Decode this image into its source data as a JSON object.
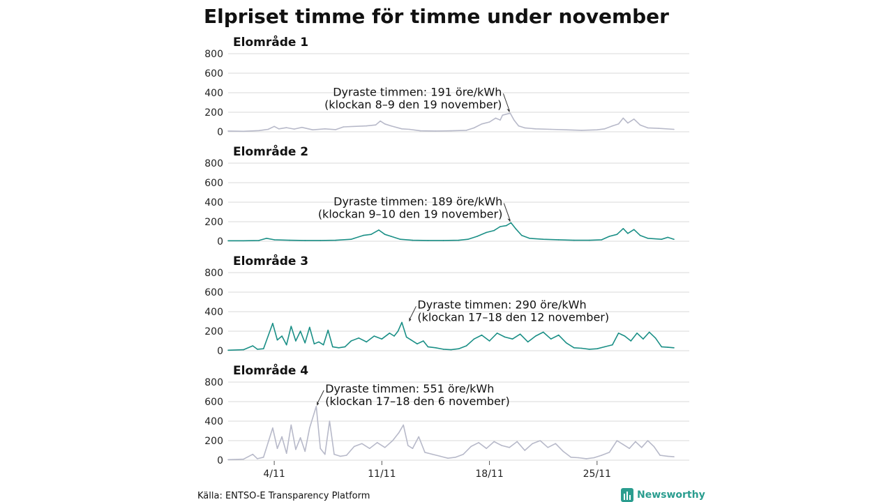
{
  "chart_data": {
    "type": "line",
    "title": "Elpriset timme för timme under november",
    "source": "Källa: ENTSO-E Transparency Platform",
    "brand": "Newsworthy",
    "x_unit": "hour of November",
    "x_range": [
      "2022-11-01 00:00",
      "2022-11-30 23:00"
    ],
    "x_ticks": [
      {
        "label": "4/11",
        "day": 4
      },
      {
        "label": "11/11",
        "day": 11
      },
      {
        "label": "18/11",
        "day": 18
      },
      {
        "label": "25/11",
        "day": 25
      }
    ],
    "ylim": [
      0,
      800
    ],
    "y_ticks": [
      0,
      200,
      400,
      600,
      800
    ],
    "grid": true,
    "panels": [
      {
        "name": "Elområde 1",
        "color": "#b7b9c9",
        "annotation": {
          "line1": "Dyraste timmen: 191 öre/kWh",
          "line2": "(klockan 8–9 den 19 november)",
          "day": 19,
          "hour": 8.5,
          "value": 191,
          "side": "left"
        },
        "points": [
          [
            1,
            8
          ],
          [
            2,
            5
          ],
          [
            3,
            12
          ],
          [
            3.6,
            25
          ],
          [
            4,
            55
          ],
          [
            4.3,
            30
          ],
          [
            4.8,
            42
          ],
          [
            5.3,
            28
          ],
          [
            5.8,
            45
          ],
          [
            6.5,
            20
          ],
          [
            7.3,
            30
          ],
          [
            8,
            22
          ],
          [
            8.5,
            50
          ],
          [
            9.2,
            55
          ],
          [
            10,
            60
          ],
          [
            10.6,
            70
          ],
          [
            10.9,
            110
          ],
          [
            11.2,
            80
          ],
          [
            11.6,
            60
          ],
          [
            12.3,
            30
          ],
          [
            12.8,
            25
          ],
          [
            13.5,
            10
          ],
          [
            14.5,
            8
          ],
          [
            15.5,
            10
          ],
          [
            16.5,
            15
          ],
          [
            17,
            40
          ],
          [
            17.5,
            80
          ],
          [
            18,
            100
          ],
          [
            18.4,
            140
          ],
          [
            18.7,
            120
          ],
          [
            18.85,
            170
          ],
          [
            19.35,
            191
          ],
          [
            19.6,
            120
          ],
          [
            19.9,
            60
          ],
          [
            20.3,
            40
          ],
          [
            21,
            30
          ],
          [
            22,
            25
          ],
          [
            23,
            20
          ],
          [
            24,
            15
          ],
          [
            25,
            20
          ],
          [
            25.5,
            30
          ],
          [
            26,
            60
          ],
          [
            26.4,
            80
          ],
          [
            26.7,
            140
          ],
          [
            27,
            90
          ],
          [
            27.4,
            130
          ],
          [
            27.8,
            70
          ],
          [
            28.3,
            40
          ],
          [
            29,
            35
          ],
          [
            30,
            25
          ]
        ]
      },
      {
        "name": "Elområde 2",
        "color": "#1a8f86",
        "annotation": {
          "line1": "Dyraste timmen: 189 öre/kWh",
          "line2": "(klockan 9–10 den 19 november)",
          "day": 19,
          "hour": 9.5,
          "value": 189,
          "side": "left"
        },
        "points": [
          [
            1,
            5
          ],
          [
            2,
            5
          ],
          [
            3,
            8
          ],
          [
            3.5,
            30
          ],
          [
            4,
            15
          ],
          [
            5,
            10
          ],
          [
            6,
            8
          ],
          [
            7,
            8
          ],
          [
            8,
            10
          ],
          [
            9,
            20
          ],
          [
            9.8,
            60
          ],
          [
            10.3,
            70
          ],
          [
            10.8,
            115
          ],
          [
            11.2,
            70
          ],
          [
            11.6,
            50
          ],
          [
            12.2,
            20
          ],
          [
            13,
            10
          ],
          [
            14,
            8
          ],
          [
            15,
            8
          ],
          [
            16,
            10
          ],
          [
            16.6,
            20
          ],
          [
            17.2,
            50
          ],
          [
            17.8,
            90
          ],
          [
            18.3,
            110
          ],
          [
            18.7,
            150
          ],
          [
            19.1,
            160
          ],
          [
            19.4,
            189
          ],
          [
            19.7,
            130
          ],
          [
            20.1,
            60
          ],
          [
            20.6,
            30
          ],
          [
            21.5,
            20
          ],
          [
            22.5,
            15
          ],
          [
            23.5,
            10
          ],
          [
            24.5,
            10
          ],
          [
            25.3,
            15
          ],
          [
            25.8,
            50
          ],
          [
            26.3,
            70
          ],
          [
            26.7,
            130
          ],
          [
            27,
            80
          ],
          [
            27.4,
            120
          ],
          [
            27.8,
            60
          ],
          [
            28.3,
            30
          ],
          [
            29.2,
            20
          ],
          [
            29.6,
            40
          ],
          [
            30,
            20
          ]
        ]
      },
      {
        "name": "Elområde 3",
        "color": "#1a8f86",
        "annotation": {
          "line1": "Dyraste timmen: 290 öre/kWh",
          "line2": "(klockan 17–18 den 12 november)",
          "day": 12,
          "hour": 17.5,
          "value": 290,
          "side": "right"
        },
        "points": [
          [
            1,
            5
          ],
          [
            2,
            10
          ],
          [
            2.6,
            50
          ],
          [
            2.9,
            15
          ],
          [
            3.3,
            20
          ],
          [
            3.6,
            150
          ],
          [
            3.9,
            280
          ],
          [
            4.2,
            110
          ],
          [
            4.5,
            150
          ],
          [
            4.8,
            60
          ],
          [
            5.1,
            250
          ],
          [
            5.4,
            100
          ],
          [
            5.7,
            200
          ],
          [
            6,
            80
          ],
          [
            6.3,
            240
          ],
          [
            6.6,
            70
          ],
          [
            6.9,
            90
          ],
          [
            7.2,
            60
          ],
          [
            7.5,
            210
          ],
          [
            7.8,
            40
          ],
          [
            8.2,
            30
          ],
          [
            8.6,
            40
          ],
          [
            9,
            100
          ],
          [
            9.5,
            130
          ],
          [
            10,
            90
          ],
          [
            10.5,
            150
          ],
          [
            11,
            120
          ],
          [
            11.5,
            180
          ],
          [
            11.8,
            150
          ],
          [
            12.05,
            200
          ],
          [
            12.3,
            290
          ],
          [
            12.6,
            140
          ],
          [
            12.9,
            110
          ],
          [
            13.3,
            70
          ],
          [
            13.7,
            100
          ],
          [
            14,
            40
          ],
          [
            14.5,
            30
          ],
          [
            15,
            15
          ],
          [
            15.5,
            10
          ],
          [
            16,
            20
          ],
          [
            16.5,
            50
          ],
          [
            17,
            120
          ],
          [
            17.5,
            160
          ],
          [
            18,
            100
          ],
          [
            18.5,
            180
          ],
          [
            19,
            140
          ],
          [
            19.5,
            120
          ],
          [
            20,
            170
          ],
          [
            20.5,
            90
          ],
          [
            21,
            150
          ],
          [
            21.5,
            190
          ],
          [
            22,
            120
          ],
          [
            22.5,
            160
          ],
          [
            23,
            80
          ],
          [
            23.5,
            30
          ],
          [
            24,
            25
          ],
          [
            24.5,
            15
          ],
          [
            25,
            20
          ],
          [
            25.5,
            40
          ],
          [
            26,
            60
          ],
          [
            26.4,
            180
          ],
          [
            26.8,
            150
          ],
          [
            27.2,
            100
          ],
          [
            27.6,
            180
          ],
          [
            28,
            120
          ],
          [
            28.4,
            190
          ],
          [
            28.8,
            130
          ],
          [
            29.2,
            40
          ],
          [
            29.6,
            35
          ],
          [
            30,
            30
          ]
        ]
      },
      {
        "name": "Elområde 4",
        "color": "#b7b9c9",
        "annotation": {
          "line1": "Dyraste timmen: 551 öre/kWh",
          "line2": "(klockan 17–18 den 6 november)",
          "day": 6,
          "hour": 17.5,
          "value": 551,
          "side": "right"
        },
        "points": [
          [
            1,
            5
          ],
          [
            2,
            10
          ],
          [
            2.6,
            60
          ],
          [
            2.9,
            15
          ],
          [
            3.3,
            30
          ],
          [
            3.6,
            180
          ],
          [
            3.9,
            330
          ],
          [
            4.2,
            120
          ],
          [
            4.5,
            240
          ],
          [
            4.8,
            70
          ],
          [
            5.1,
            360
          ],
          [
            5.4,
            110
          ],
          [
            5.7,
            230
          ],
          [
            6,
            90
          ],
          [
            6.3,
            330
          ],
          [
            6.73,
            551
          ],
          [
            7,
            120
          ],
          [
            7.3,
            60
          ],
          [
            7.6,
            400
          ],
          [
            7.9,
            60
          ],
          [
            8.3,
            40
          ],
          [
            8.7,
            50
          ],
          [
            9.2,
            140
          ],
          [
            9.7,
            170
          ],
          [
            10.2,
            120
          ],
          [
            10.7,
            180
          ],
          [
            11.2,
            130
          ],
          [
            11.7,
            200
          ],
          [
            12.1,
            280
          ],
          [
            12.4,
            360
          ],
          [
            12.7,
            150
          ],
          [
            13,
            120
          ],
          [
            13.4,
            240
          ],
          [
            13.8,
            80
          ],
          [
            14.3,
            60
          ],
          [
            14.8,
            40
          ],
          [
            15.3,
            20
          ],
          [
            15.8,
            30
          ],
          [
            16.3,
            60
          ],
          [
            16.8,
            140
          ],
          [
            17.3,
            180
          ],
          [
            17.8,
            120
          ],
          [
            18.3,
            190
          ],
          [
            18.8,
            150
          ],
          [
            19.3,
            130
          ],
          [
            19.8,
            190
          ],
          [
            20.3,
            100
          ],
          [
            20.8,
            170
          ],
          [
            21.3,
            200
          ],
          [
            21.8,
            130
          ],
          [
            22.3,
            170
          ],
          [
            22.8,
            90
          ],
          [
            23.3,
            30
          ],
          [
            23.8,
            25
          ],
          [
            24.3,
            15
          ],
          [
            24.8,
            25
          ],
          [
            25.3,
            50
          ],
          [
            25.8,
            80
          ],
          [
            26.3,
            200
          ],
          [
            26.7,
            160
          ],
          [
            27.1,
            120
          ],
          [
            27.5,
            190
          ],
          [
            27.9,
            130
          ],
          [
            28.3,
            200
          ],
          [
            28.7,
            140
          ],
          [
            29.1,
            50
          ],
          [
            29.6,
            40
          ],
          [
            30,
            35
          ]
        ]
      }
    ]
  }
}
